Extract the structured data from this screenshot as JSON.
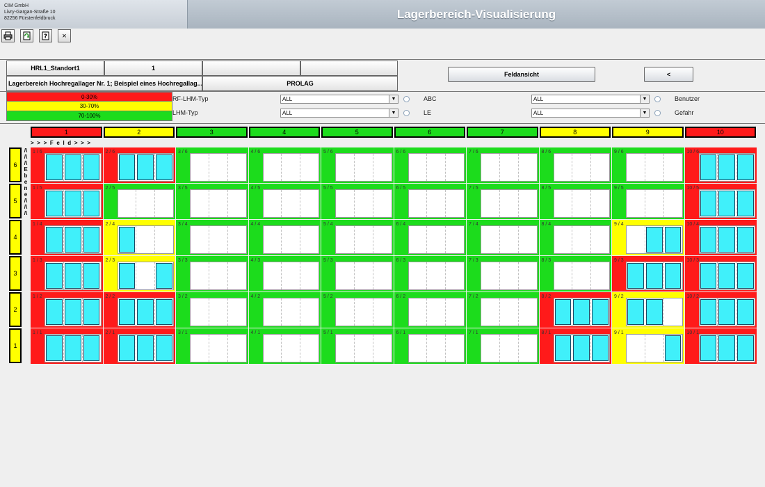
{
  "company": [
    "CIM GmbH",
    "Livry-Gargan-Straße 10",
    "82256 Fürstenfeldbruck"
  ],
  "title": "Lagerbereich-Visualisierung",
  "toolbar": [
    {
      "name": "print-icon",
      "glyph": "print"
    },
    {
      "name": "refresh-icon",
      "glyph": "refresh"
    },
    {
      "name": "help-icon",
      "glyph": "?"
    },
    {
      "name": "close-icon",
      "glyph": "×"
    }
  ],
  "info": {
    "lager": "HRL1_Standort1",
    "nr": "1",
    "empty1": "",
    "empty2": "",
    "description": "Lagerbereich Hochregallager Nr. 1; Beispiel eines Hochregallag...",
    "system": "PROLAG"
  },
  "buttons": {
    "feldansicht": "Feldansicht",
    "back": "<"
  },
  "legend": [
    {
      "label": "0-30%",
      "color": "#ff1a1a"
    },
    {
      "label": "30-70%",
      "color": "#ffff00"
    },
    {
      "label": "70-100%",
      "color": "#1cdc1c"
    }
  ],
  "filters": {
    "rf_lhm_typ": {
      "label": "RF-LHM-Typ",
      "value": "ALL"
    },
    "lhm_typ": {
      "label": "LHM-Typ",
      "value": "ALL"
    },
    "abc": {
      "label": "ABC",
      "value": "ALL"
    },
    "le": {
      "label": "LE",
      "value": "ALL"
    },
    "benutzer": {
      "label": "Benutzer"
    },
    "gefahr": {
      "label": "Gefahr"
    }
  },
  "colors": {
    "red": "#ff1a1a",
    "yellow": "#ffff00",
    "green": "#1cdc1c",
    "filled": "#40f0fa"
  },
  "feld_label": "> > > F e l d > > >",
  "ebene_label": [
    "/\\",
    "/\\",
    "/\\",
    "E",
    "b",
    "e",
    "n",
    "e",
    "/\\",
    "/\\",
    "/\\"
  ],
  "columns": [
    {
      "label": "1",
      "color": "red"
    },
    {
      "label": "2",
      "color": "yellow"
    },
    {
      "label": "3",
      "color": "green"
    },
    {
      "label": "4",
      "color": "green"
    },
    {
      "label": "5",
      "color": "green"
    },
    {
      "label": "6",
      "color": "green"
    },
    {
      "label": "7",
      "color": "green"
    },
    {
      "label": "8",
      "color": "yellow"
    },
    {
      "label": "9",
      "color": "yellow"
    },
    {
      "label": "10",
      "color": "red"
    }
  ],
  "rows": [
    {
      "label": "6",
      "cells": [
        {
          "label": "1 / 6",
          "color": "red",
          "slots": [
            1,
            1,
            1
          ]
        },
        {
          "label": "2 / 6",
          "color": "red",
          "slots": [
            1,
            1,
            1
          ]
        },
        {
          "label": "3 / 6",
          "color": "green",
          "slots": [
            0,
            0,
            0
          ]
        },
        {
          "label": "4 / 6",
          "color": "green",
          "slots": [
            0,
            0,
            0
          ]
        },
        {
          "label": "5 / 6",
          "color": "green",
          "slots": [
            0,
            0,
            0
          ]
        },
        {
          "label": "6 / 6",
          "color": "green",
          "slots": [
            0,
            0,
            0
          ]
        },
        {
          "label": "7 / 6",
          "color": "green",
          "slots": [
            0,
            0,
            0
          ]
        },
        {
          "label": "8 / 6",
          "color": "green",
          "slots": [
            0,
            0,
            0
          ]
        },
        {
          "label": "9 / 6",
          "color": "green",
          "slots": [
            0,
            0,
            0
          ]
        },
        {
          "label": "10 / 6",
          "color": "red",
          "slots": [
            1,
            1,
            1
          ]
        }
      ]
    },
    {
      "label": "5",
      "cells": [
        {
          "label": "1 / 5",
          "color": "red",
          "slots": [
            1,
            1,
            1
          ]
        },
        {
          "label": "2 / 5",
          "color": "green",
          "slots": [
            0,
            0,
            0
          ]
        },
        {
          "label": "3 / 5",
          "color": "green",
          "slots": [
            0,
            0,
            0
          ]
        },
        {
          "label": "4 / 5",
          "color": "green",
          "slots": [
            0,
            0,
            0
          ]
        },
        {
          "label": "5 / 5",
          "color": "green",
          "slots": [
            0,
            0,
            0
          ]
        },
        {
          "label": "6 / 5",
          "color": "green",
          "slots": [
            0,
            0,
            0
          ]
        },
        {
          "label": "7 / 5",
          "color": "green",
          "slots": [
            0,
            0,
            0
          ]
        },
        {
          "label": "8 / 5",
          "color": "green",
          "slots": [
            0,
            0,
            0
          ]
        },
        {
          "label": "9 / 5",
          "color": "green",
          "slots": [
            0,
            0,
            0
          ]
        },
        {
          "label": "10 / 5",
          "color": "red",
          "slots": [
            1,
            1,
            1
          ]
        }
      ]
    },
    {
      "label": "4",
      "cells": [
        {
          "label": "1 / 4",
          "color": "red",
          "slots": [
            1,
            1,
            1
          ]
        },
        {
          "label": "2 / 4",
          "color": "yellow",
          "slots": [
            1,
            0,
            0
          ]
        },
        {
          "label": "3 / 4",
          "color": "green",
          "slots": [
            0,
            0,
            0
          ]
        },
        {
          "label": "4 / 4",
          "color": "green",
          "slots": [
            0,
            0,
            0
          ]
        },
        {
          "label": "5 / 4",
          "color": "green",
          "slots": [
            0,
            0,
            0
          ]
        },
        {
          "label": "6 / 4",
          "color": "green",
          "slots": [
            0,
            0,
            0
          ]
        },
        {
          "label": "7 / 4",
          "color": "green",
          "slots": [
            0,
            0,
            0
          ]
        },
        {
          "label": "8 / 4",
          "color": "green",
          "slots": [
            0,
            0,
            0
          ]
        },
        {
          "label": "9 / 4",
          "color": "yellow",
          "slots": [
            0,
            1,
            1
          ]
        },
        {
          "label": "10 / 4",
          "color": "red",
          "slots": [
            1,
            1,
            1
          ]
        }
      ]
    },
    {
      "label": "3",
      "cells": [
        {
          "label": "1 / 3",
          "color": "red",
          "slots": [
            1,
            1,
            1
          ]
        },
        {
          "label": "2 / 3",
          "color": "yellow",
          "slots": [
            1,
            0,
            1
          ]
        },
        {
          "label": "3 / 3",
          "color": "green",
          "slots": [
            0,
            0,
            0
          ]
        },
        {
          "label": "4 / 3",
          "color": "green",
          "slots": [
            0,
            0,
            0
          ]
        },
        {
          "label": "5 / 3",
          "color": "green",
          "slots": [
            0,
            0,
            0
          ]
        },
        {
          "label": "6 / 3",
          "color": "green",
          "slots": [
            0,
            0,
            0
          ]
        },
        {
          "label": "7 / 3",
          "color": "green",
          "slots": [
            0,
            0,
            0
          ]
        },
        {
          "label": "8 / 3",
          "color": "green",
          "slots": [
            0,
            0,
            0
          ]
        },
        {
          "label": "9 / 3",
          "color": "red",
          "slots": [
            1,
            1,
            1
          ]
        },
        {
          "label": "10 / 3",
          "color": "red",
          "slots": [
            1,
            1,
            1
          ]
        }
      ]
    },
    {
      "label": "2",
      "cells": [
        {
          "label": "1 / 2",
          "color": "red",
          "slots": [
            1,
            1,
            1
          ]
        },
        {
          "label": "2 / 2",
          "color": "red",
          "slots": [
            1,
            1,
            1
          ]
        },
        {
          "label": "3 / 2",
          "color": "green",
          "slots": [
            0,
            0,
            0
          ]
        },
        {
          "label": "4 / 2",
          "color": "green",
          "slots": [
            0,
            0,
            0
          ]
        },
        {
          "label": "5 / 2",
          "color": "green",
          "slots": [
            0,
            0,
            0
          ]
        },
        {
          "label": "6 / 2",
          "color": "green",
          "slots": [
            0,
            0,
            0
          ]
        },
        {
          "label": "7 / 2",
          "color": "green",
          "slots": [
            0,
            0,
            0
          ]
        },
        {
          "label": "8 / 2",
          "color": "red",
          "slots": [
            1,
            1,
            1
          ]
        },
        {
          "label": "9 / 2",
          "color": "yellow",
          "slots": [
            1,
            1,
            0
          ]
        },
        {
          "label": "10 / 2",
          "color": "red",
          "slots": [
            1,
            1,
            1
          ]
        }
      ]
    },
    {
      "label": "1",
      "cells": [
        {
          "label": "1 / 1",
          "color": "red",
          "slots": [
            1,
            1,
            1
          ]
        },
        {
          "label": "2 / 1",
          "color": "red",
          "slots": [
            1,
            1,
            1
          ]
        },
        {
          "label": "3 / 1",
          "color": "green",
          "slots": [
            0,
            0,
            0
          ]
        },
        {
          "label": "4 / 1",
          "color": "green",
          "slots": [
            0,
            0,
            0
          ]
        },
        {
          "label": "5 / 1",
          "color": "green",
          "slots": [
            0,
            0,
            0
          ]
        },
        {
          "label": "6 / 1",
          "color": "green",
          "slots": [
            0,
            0,
            0
          ]
        },
        {
          "label": "7 / 1",
          "color": "green",
          "slots": [
            0,
            0,
            0
          ]
        },
        {
          "label": "8 / 1",
          "color": "red",
          "slots": [
            1,
            1,
            1
          ]
        },
        {
          "label": "9 / 1",
          "color": "yellow",
          "slots": [
            0,
            0,
            1
          ]
        },
        {
          "label": "10 / 1",
          "color": "red",
          "slots": [
            1,
            1,
            1
          ]
        }
      ]
    }
  ]
}
